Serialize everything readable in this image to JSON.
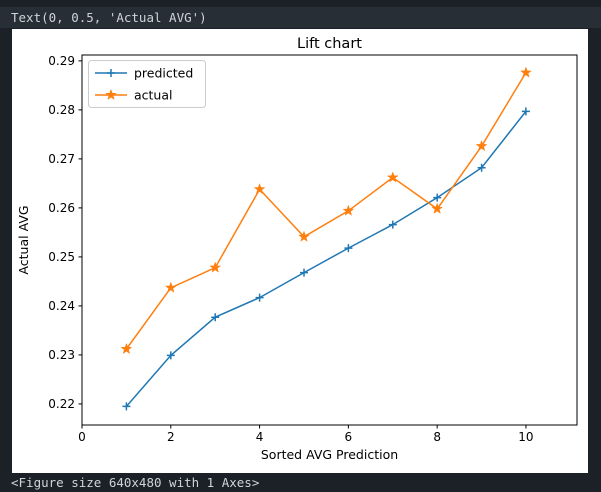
{
  "terminal": {
    "top_text": "Text(0, 0.5, 'Actual AVG')",
    "bottom_text": "<Figure size 640x480 with 1 Axes>"
  },
  "figure": {
    "background": "#ffffff",
    "text_color": "#000000"
  },
  "chart_data": {
    "type": "line",
    "title": "Lift chart",
    "xlabel": "Sorted AVG Prediction",
    "ylabel": "Actual AVG",
    "grid": false,
    "legend_position": "upper-left",
    "x": [
      1,
      2,
      3,
      4,
      5,
      6,
      7,
      8,
      9,
      10
    ],
    "series": [
      {
        "name": "predicted",
        "color": "#1f77b4",
        "marker": "plus",
        "values": [
          0.2195,
          0.2299,
          0.2377,
          0.2417,
          0.2468,
          0.2518,
          0.2566,
          0.2621,
          0.2682,
          0.2797
        ]
      },
      {
        "name": "actual",
        "color": "#ff7f0e",
        "marker": "star",
        "values": [
          0.2312,
          0.2437,
          0.2478,
          0.2638,
          0.2541,
          0.2594,
          0.2662,
          0.2598,
          0.2726,
          0.2876
        ]
      }
    ],
    "xlim": [
      0,
      11.15
    ],
    "ylim": [
      0.2157,
      0.2912
    ],
    "xticks": [
      0,
      2,
      4,
      6,
      8,
      10
    ],
    "xtick_labels": [
      "0",
      "2",
      "4",
      "6",
      "8",
      "10"
    ],
    "yticks": [
      0.22,
      0.23,
      0.24,
      0.25,
      0.26,
      0.27,
      0.28,
      0.29
    ],
    "ytick_labels": [
      "0.22",
      "0.23",
      "0.24",
      "0.25",
      "0.26",
      "0.27",
      "0.28",
      "0.29"
    ]
  }
}
